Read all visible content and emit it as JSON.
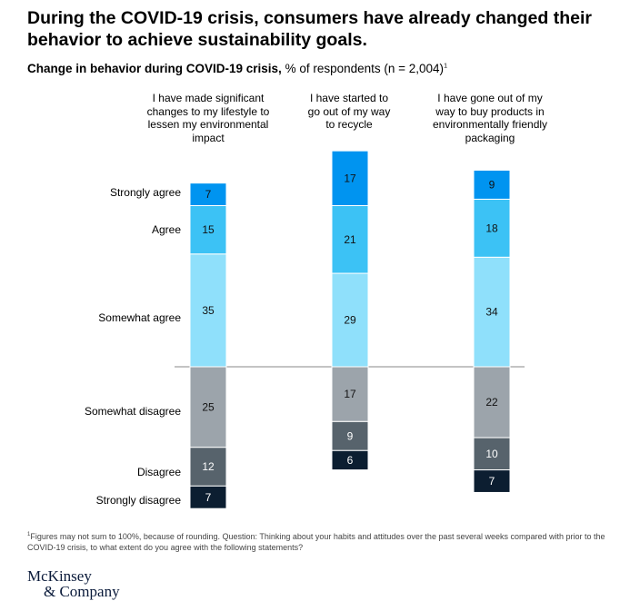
{
  "header": {
    "title": "During the COVID-19 crisis, consumers have already changed their behavior to achieve sustainability goals.",
    "subtitle_bold": "Change in behavior during COVID-19 crisis,",
    "subtitle_rest": " % of respondents (n = 2,004)",
    "subtitle_mark": "1"
  },
  "chart_data": {
    "type": "bar",
    "stacked": true,
    "diverging": true,
    "categories": [
      "I have made significant changes to my lifestyle to lessen my environmental impact",
      "I have started to go out of my way to recycle",
      "I have gone out of my way to buy products in environmentally friendly packaging"
    ],
    "series": [
      {
        "name": "Strongly agree",
        "values": [
          7,
          17,
          9
        ],
        "color": "#0094f0",
        "side": "agree"
      },
      {
        "name": "Agree",
        "values": [
          15,
          21,
          18
        ],
        "color": "#3cc2f5",
        "side": "agree"
      },
      {
        "name": "Somewhat agree",
        "values": [
          35,
          29,
          34
        ],
        "color": "#8fe0fb",
        "side": "agree"
      },
      {
        "name": "Somewhat disagree",
        "values": [
          25,
          17,
          22
        ],
        "color": "#9ca4ab",
        "side": "disagree"
      },
      {
        "name": "Disagree",
        "values": [
          12,
          9,
          10
        ],
        "color": "#57636c",
        "side": "disagree"
      },
      {
        "name": "Strongly disagree",
        "values": [
          7,
          6,
          7
        ],
        "color": "#0c1e31",
        "side": "disagree"
      }
    ],
    "unit": "% of respondents"
  },
  "footnote": {
    "mark": "1",
    "text": "Figures may not sum to 100%, because of rounding. Question: Thinking about your habits and attitudes over the past several weeks compared with prior to the COVID-19 crisis, to what extent do you agree with the following statements?"
  },
  "logo": {
    "line1": "McKinsey",
    "line2": "& Company"
  }
}
